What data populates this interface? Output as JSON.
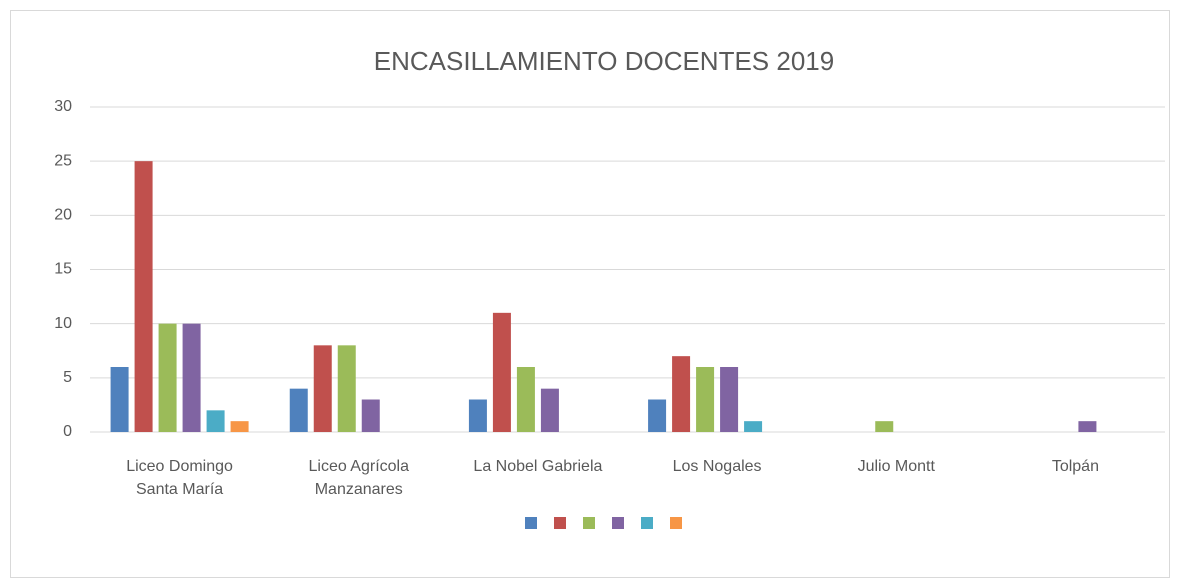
{
  "chart_data": {
    "type": "bar",
    "title": "ENCASILLAMIENTO DOCENTES 2019",
    "categories": [
      "Liceo Domingo\nSanta María",
      "Liceo Agrícola\nManzanares",
      "La Nobel Gabriela",
      "Los Nogales",
      "Julio Montt",
      "Tolpán"
    ],
    "series": [
      {
        "color": "#4f81bd",
        "values": [
          6,
          4,
          3,
          3,
          0,
          0
        ]
      },
      {
        "color": "#c0504d",
        "values": [
          25,
          8,
          11,
          7,
          0,
          0
        ]
      },
      {
        "color": "#9bbb59",
        "values": [
          10,
          8,
          6,
          6,
          1,
          0
        ]
      },
      {
        "color": "#8064a2",
        "values": [
          10,
          3,
          4,
          6,
          0,
          1
        ]
      },
      {
        "color": "#4bacc6",
        "values": [
          2,
          0,
          0,
          1,
          0,
          0
        ]
      },
      {
        "color": "#f79646",
        "values": [
          1,
          0,
          0,
          0,
          0,
          0
        ]
      }
    ],
    "ylim": [
      0,
      30
    ],
    "yticks": [
      0,
      5,
      10,
      15,
      20,
      25,
      30
    ],
    "grid": true,
    "legend": "bottom"
  }
}
